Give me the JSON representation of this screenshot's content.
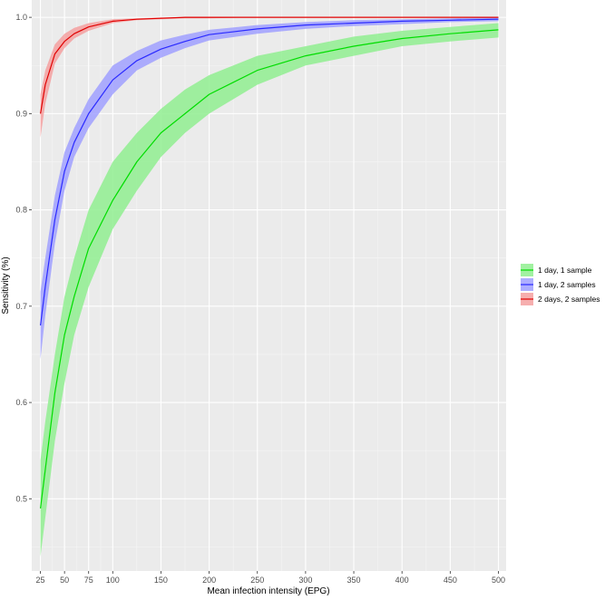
{
  "chart_data": {
    "type": "line",
    "title": "",
    "xlabel": "Mean infection intensity (EPG)",
    "ylabel": "Sensitivity (%)",
    "xlim": [
      16,
      508
    ],
    "ylim": [
      0.425,
      1.018
    ],
    "x_ticks": [
      25,
      50,
      75,
      100,
      150,
      200,
      250,
      300,
      350,
      400,
      450,
      500
    ],
    "y_ticks": [
      0.5,
      0.6,
      0.7,
      0.8,
      0.9,
      1.0
    ],
    "grid": true,
    "legend_position": "right",
    "series": [
      {
        "name": "1 day, 1 sample",
        "color": "#00dd00",
        "band_color": "#90ee90",
        "x": [
          25,
          30,
          40,
          50,
          60,
          75,
          100,
          125,
          150,
          175,
          200,
          250,
          300,
          350,
          400,
          450,
          500
        ],
        "y": [
          0.49,
          0.53,
          0.61,
          0.67,
          0.71,
          0.76,
          0.81,
          0.85,
          0.88,
          0.9,
          0.92,
          0.945,
          0.96,
          0.97,
          0.978,
          0.983,
          0.987
        ],
        "lower": [
          0.44,
          0.48,
          0.56,
          0.62,
          0.67,
          0.72,
          0.78,
          0.82,
          0.855,
          0.88,
          0.9,
          0.93,
          0.95,
          0.96,
          0.97,
          0.975,
          0.979
        ],
        "upper": [
          0.54,
          0.58,
          0.65,
          0.71,
          0.75,
          0.8,
          0.85,
          0.88,
          0.905,
          0.925,
          0.94,
          0.96,
          0.97,
          0.98,
          0.986,
          0.99,
          0.994
        ]
      },
      {
        "name": "1 day, 2 samples",
        "color": "#2a2aff",
        "band_color": "#a0a0ff",
        "x": [
          25,
          30,
          40,
          50,
          60,
          75,
          100,
          125,
          150,
          175,
          200,
          250,
          300,
          350,
          400,
          450,
          500
        ],
        "y": [
          0.68,
          0.72,
          0.79,
          0.84,
          0.87,
          0.9,
          0.935,
          0.955,
          0.967,
          0.975,
          0.982,
          0.988,
          0.992,
          0.994,
          0.996,
          0.997,
          0.998
        ],
        "lower": [
          0.645,
          0.69,
          0.765,
          0.82,
          0.855,
          0.885,
          0.92,
          0.945,
          0.958,
          0.968,
          0.976,
          0.983,
          0.988,
          0.991,
          0.993,
          0.995,
          0.996
        ],
        "upper": [
          0.715,
          0.75,
          0.815,
          0.86,
          0.885,
          0.915,
          0.95,
          0.965,
          0.976,
          0.982,
          0.987,
          0.992,
          0.995,
          0.997,
          0.998,
          0.999,
          1.0
        ]
      },
      {
        "name": "2 days, 2 samples",
        "color": "#e00000",
        "band_color": "#f4a0a0",
        "x": [
          25,
          30,
          40,
          50,
          60,
          75,
          100,
          125,
          150,
          175,
          200,
          250,
          300,
          350,
          400,
          450,
          500
        ],
        "y": [
          0.9,
          0.93,
          0.962,
          0.975,
          0.983,
          0.99,
          0.996,
          0.998,
          0.999,
          1.0,
          1.0,
          1.0,
          1.0,
          1.0,
          1.0,
          1.0,
          1.0
        ],
        "lower": [
          0.875,
          0.91,
          0.952,
          0.968,
          0.978,
          0.986,
          0.994,
          0.997,
          0.998,
          0.999,
          0.999,
          1.0,
          1.0,
          1.0,
          1.0,
          1.0,
          1.0
        ],
        "upper": [
          0.92,
          0.945,
          0.972,
          0.983,
          0.989,
          0.994,
          0.998,
          0.999,
          1.0,
          1.0,
          1.0,
          1.0,
          1.0,
          1.0,
          1.0,
          1.0,
          1.0
        ]
      }
    ]
  }
}
